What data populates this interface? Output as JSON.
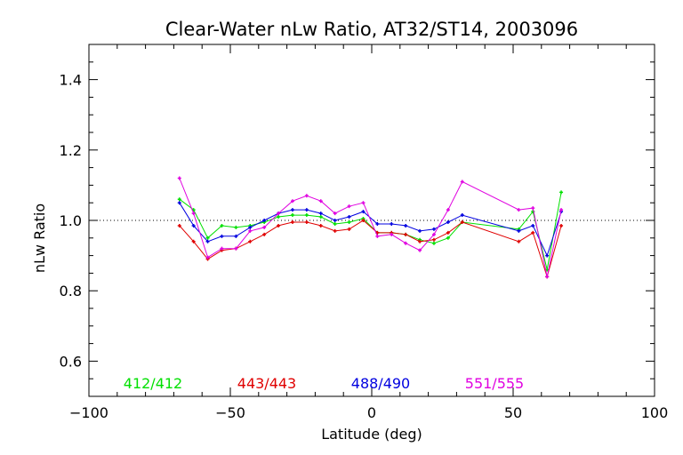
{
  "chart_data": {
    "type": "line",
    "title": "Clear-Water nLw Ratio, AT32/ST14, 2003096",
    "xlabel": "Latitude (deg)",
    "ylabel": "nLw Ratio",
    "xlim": [
      -100,
      100
    ],
    "ylim": [
      0.5,
      1.5
    ],
    "xticks": [
      -100,
      -50,
      0,
      50,
      100
    ],
    "xtick_labels": [
      "−100",
      "−50",
      "0",
      "50",
      "100"
    ],
    "yticks": [
      0.6,
      0.8,
      1.0,
      1.2,
      1.4
    ],
    "ytick_labels": [
      "0.6",
      "0.8",
      "1.0",
      "1.2",
      "1.4"
    ],
    "reference_line": 1.0,
    "grid": false,
    "legend_placement": "bottom",
    "x": [
      -68,
      -63,
      -58,
      -53,
      -48,
      -43,
      -38,
      -33,
      -28,
      -23,
      -18,
      -13,
      -8,
      -3,
      2,
      7,
      12,
      17,
      22,
      27,
      32,
      52,
      57,
      62,
      67
    ],
    "series": [
      {
        "name": "412/412",
        "color": "#00e000",
        "values": [
          1.06,
          1.03,
          0.95,
          0.985,
          0.98,
          0.985,
          0.995,
          1.01,
          1.015,
          1.015,
          1.01,
          0.99,
          0.995,
          1.005,
          0.965,
          0.965,
          0.96,
          0.945,
          0.935,
          0.95,
          0.995,
          0.975,
          1.025,
          0.86,
          1.08
        ]
      },
      {
        "name": "443/443",
        "color": "#e00000",
        "values": [
          0.985,
          0.94,
          0.89,
          0.915,
          0.92,
          0.94,
          0.96,
          0.985,
          0.995,
          0.995,
          0.985,
          0.97,
          0.975,
          1.0,
          0.965,
          0.965,
          0.96,
          0.94,
          0.945,
          0.965,
          0.995,
          0.94,
          0.965,
          0.84,
          0.985
        ]
      },
      {
        "name": "488/490",
        "color": "#0000e0",
        "values": [
          1.05,
          0.985,
          0.94,
          0.955,
          0.955,
          0.98,
          1.0,
          1.02,
          1.03,
          1.03,
          1.02,
          1.0,
          1.01,
          1.025,
          0.99,
          0.99,
          0.985,
          0.97,
          0.975,
          0.995,
          1.015,
          0.97,
          0.985,
          0.9,
          1.025
        ]
      },
      {
        "name": "551/555",
        "color": "#e000e0",
        "values": [
          1.12,
          1.02,
          0.895,
          0.92,
          0.92,
          0.97,
          0.98,
          1.02,
          1.055,
          1.07,
          1.055,
          1.02,
          1.04,
          1.05,
          0.955,
          0.96,
          0.935,
          0.915,
          0.96,
          1.03,
          1.11,
          1.03,
          1.035,
          0.84,
          1.03
        ]
      }
    ]
  }
}
